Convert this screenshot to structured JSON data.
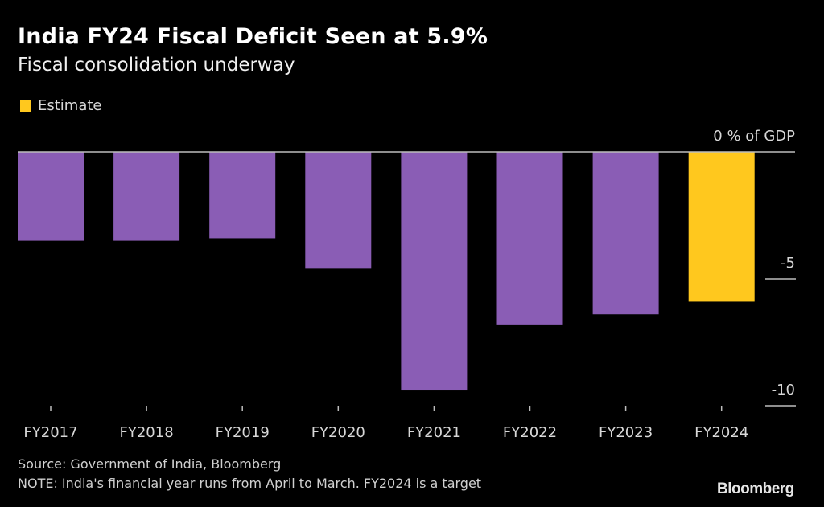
{
  "header": {
    "title": "India FY24 Fiscal Deficit Seen at 5.9%",
    "subtitle": "Fiscal consolidation underway"
  },
  "legend": {
    "items": [
      {
        "label": "Estimate",
        "color": "#ffc81e"
      }
    ]
  },
  "footer": {
    "source": "Source: Government of India, Bloomberg",
    "note": "NOTE: India's financial year runs from April to March. FY2024 is a target",
    "brand": "Bloomberg"
  },
  "chart_data": {
    "type": "bar",
    "title": "India FY24 Fiscal Deficit Seen at 5.9%",
    "subtitle": "Fiscal consolidation underway",
    "categories": [
      "FY2017",
      "FY2018",
      "FY2019",
      "FY2020",
      "FY2021",
      "FY2022",
      "FY2023",
      "FY2024"
    ],
    "values": [
      -3.5,
      -3.5,
      -3.4,
      -4.6,
      -9.4,
      -6.8,
      -6.4,
      -5.9
    ],
    "estimate": [
      false,
      false,
      false,
      false,
      false,
      false,
      false,
      true
    ],
    "colors": {
      "actual": "#8a5db5",
      "estimate": "#ffc81e",
      "axis": "#bdbdbd",
      "text": "#d8d8d8"
    },
    "xlabel": "",
    "ylabel": "% of GDP",
    "ylim": [
      -10,
      0
    ],
    "yticks": [
      0,
      -5,
      -10
    ],
    "ytick_labels": [
      "0 % of GDP",
      "-5",
      "-10"
    ],
    "grid": false,
    "legend_position": "top-left"
  }
}
